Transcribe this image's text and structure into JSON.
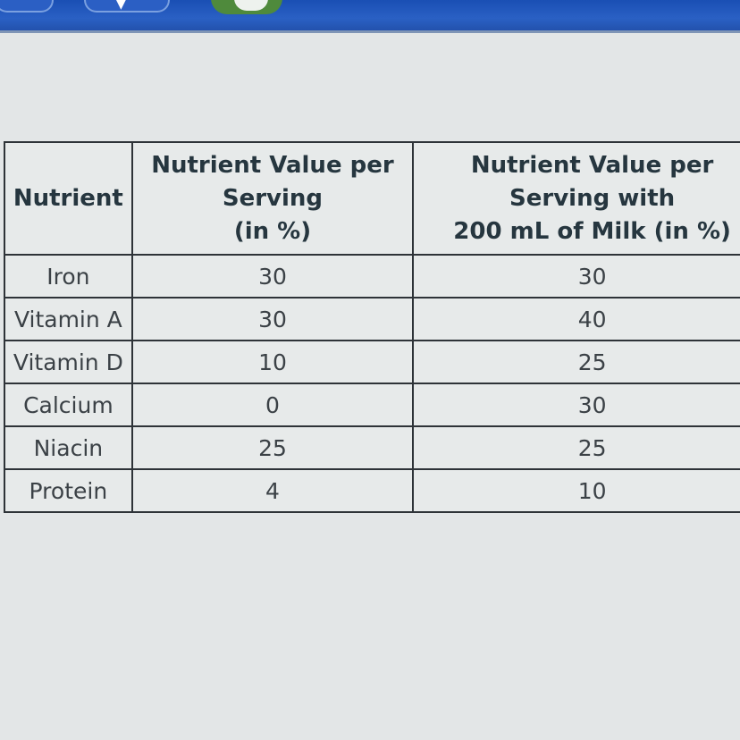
{
  "table": {
    "headers": [
      [
        "Nutrient"
      ],
      [
        "Nutrient Value per",
        "Serving",
        "(in %)"
      ],
      [
        "Nutrient Value per",
        "Serving with",
        "200 mL of Milk (in %)"
      ]
    ],
    "rows": [
      {
        "nutrient": "Iron",
        "per_serving": "30",
        "with_milk": "30"
      },
      {
        "nutrient": "Vitamin A",
        "per_serving": "30",
        "with_milk": "40"
      },
      {
        "nutrient": "Vitamin D",
        "per_serving": "10",
        "with_milk": "25"
      },
      {
        "nutrient": "Calcium",
        "per_serving": "0",
        "with_milk": "30"
      },
      {
        "nutrient": "Niacin",
        "per_serving": "25",
        "with_milk": "25"
      },
      {
        "nutrient": "Protein",
        "per_serving": "4",
        "with_milk": "10"
      }
    ]
  },
  "colors": {
    "toolbar": "#2a60c4",
    "background": "#e3e6e7",
    "border": "#2e3338"
  }
}
